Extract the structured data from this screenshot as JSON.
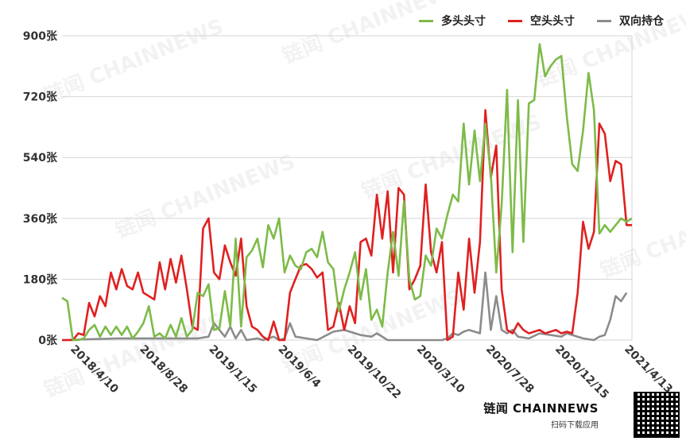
{
  "chart_data": {
    "type": "line",
    "ylim": [
      0,
      900
    ],
    "yticks": [
      "0张",
      "180张",
      "360张",
      "540张",
      "720张",
      "900张"
    ],
    "ytick_values": [
      0,
      180,
      360,
      540,
      720,
      900
    ],
    "xticks": [
      "2018/4/10",
      "2018/8/28",
      "2019/1/15",
      "2019/6/4",
      "2019/10/22",
      "2020/3/10",
      "2020/7/28",
      "2020/12/15",
      "2021/4/13"
    ],
    "grid": "horizontal",
    "legend_position": "top-right",
    "n_points": 160,
    "series": [
      {
        "name": "多头头寸",
        "color": "#7dbb48",
        "points": [
          [
            0,
            125
          ],
          [
            2,
            115
          ],
          [
            4,
            0
          ],
          [
            6,
            0
          ],
          [
            8,
            5
          ],
          [
            10,
            30
          ],
          [
            12,
            45
          ],
          [
            14,
            10
          ],
          [
            16,
            40
          ],
          [
            18,
            15
          ],
          [
            20,
            40
          ],
          [
            22,
            15
          ],
          [
            24,
            40
          ],
          [
            26,
            5
          ],
          [
            28,
            25
          ],
          [
            30,
            50
          ],
          [
            32,
            100
          ],
          [
            34,
            10
          ],
          [
            36,
            20
          ],
          [
            38,
            5
          ],
          [
            40,
            45
          ],
          [
            42,
            10
          ],
          [
            44,
            65
          ],
          [
            46,
            10
          ],
          [
            48,
            30
          ],
          [
            50,
            140
          ],
          [
            52,
            130
          ],
          [
            54,
            165
          ],
          [
            56,
            30
          ],
          [
            58,
            35
          ],
          [
            60,
            145
          ],
          [
            62,
            40
          ],
          [
            64,
            300
          ],
          [
            66,
            40
          ],
          [
            68,
            245
          ],
          [
            70,
            265
          ],
          [
            72,
            300
          ],
          [
            74,
            215
          ],
          [
            76,
            340
          ],
          [
            78,
            300
          ],
          [
            80,
            360
          ],
          [
            82,
            200
          ],
          [
            84,
            250
          ],
          [
            86,
            220
          ],
          [
            88,
            210
          ],
          [
            90,
            260
          ],
          [
            92,
            270
          ],
          [
            94,
            245
          ],
          [
            96,
            320
          ],
          [
            98,
            230
          ],
          [
            100,
            210
          ],
          [
            102,
            85
          ],
          [
            104,
            150
          ],
          [
            106,
            200
          ],
          [
            108,
            260
          ],
          [
            110,
            120
          ],
          [
            112,
            210
          ],
          [
            114,
            60
          ],
          [
            116,
            90
          ],
          [
            118,
            40
          ],
          [
            120,
            200
          ],
          [
            122,
            320
          ],
          [
            124,
            190
          ],
          [
            126,
            410
          ],
          [
            128,
            180
          ],
          [
            130,
            120
          ],
          [
            132,
            130
          ],
          [
            134,
            250
          ],
          [
            136,
            220
          ],
          [
            138,
            330
          ],
          [
            140,
            300
          ],
          [
            142,
            370
          ],
          [
            144,
            430
          ],
          [
            146,
            410
          ],
          [
            148,
            640
          ],
          [
            150,
            460
          ],
          [
            152,
            620
          ],
          [
            154,
            470
          ],
          [
            156,
            640
          ],
          [
            158,
            490
          ],
          [
            160,
            200
          ],
          [
            162,
            400
          ],
          [
            164,
            740
          ],
          [
            166,
            260
          ],
          [
            168,
            710
          ],
          [
            170,
            290
          ],
          [
            172,
            700
          ],
          [
            174,
            710
          ],
          [
            176,
            875
          ],
          [
            178,
            780
          ],
          [
            180,
            810
          ],
          [
            182,
            830
          ],
          [
            184,
            840
          ],
          [
            186,
            660
          ],
          [
            188,
            520
          ],
          [
            190,
            500
          ],
          [
            192,
            620
          ],
          [
            194,
            790
          ],
          [
            196,
            680
          ],
          [
            198,
            315
          ],
          [
            200,
            340
          ],
          [
            202,
            320
          ],
          [
            204,
            340
          ],
          [
            206,
            360
          ],
          [
            208,
            350
          ],
          [
            210,
            360
          ]
        ]
      },
      {
        "name": "空头头寸",
        "color": "#e02020",
        "points": [
          [
            0,
            0
          ],
          [
            2,
            0
          ],
          [
            4,
            0
          ],
          [
            6,
            20
          ],
          [
            8,
            15
          ],
          [
            10,
            110
          ],
          [
            12,
            70
          ],
          [
            14,
            130
          ],
          [
            16,
            100
          ],
          [
            18,
            200
          ],
          [
            20,
            150
          ],
          [
            22,
            210
          ],
          [
            24,
            160
          ],
          [
            26,
            150
          ],
          [
            28,
            200
          ],
          [
            30,
            140
          ],
          [
            32,
            130
          ],
          [
            34,
            120
          ],
          [
            36,
            230
          ],
          [
            38,
            150
          ],
          [
            40,
            240
          ],
          [
            42,
            170
          ],
          [
            44,
            250
          ],
          [
            46,
            150
          ],
          [
            48,
            40
          ],
          [
            50,
            30
          ],
          [
            52,
            330
          ],
          [
            54,
            360
          ],
          [
            56,
            200
          ],
          [
            58,
            180
          ],
          [
            60,
            280
          ],
          [
            62,
            230
          ],
          [
            64,
            190
          ],
          [
            66,
            300
          ],
          [
            68,
            100
          ],
          [
            70,
            40
          ],
          [
            72,
            30
          ],
          [
            74,
            10
          ],
          [
            76,
            0
          ],
          [
            78,
            55
          ],
          [
            80,
            0
          ],
          [
            82,
            0
          ],
          [
            84,
            140
          ],
          [
            86,
            180
          ],
          [
            88,
            220
          ],
          [
            90,
            225
          ],
          [
            92,
            210
          ],
          [
            94,
            185
          ],
          [
            96,
            200
          ],
          [
            98,
            30
          ],
          [
            100,
            40
          ],
          [
            102,
            110
          ],
          [
            104,
            30
          ],
          [
            106,
            100
          ],
          [
            108,
            50
          ],
          [
            110,
            290
          ],
          [
            112,
            300
          ],
          [
            114,
            250
          ],
          [
            116,
            430
          ],
          [
            118,
            300
          ],
          [
            120,
            440
          ],
          [
            122,
            200
          ],
          [
            124,
            450
          ],
          [
            126,
            430
          ],
          [
            128,
            150
          ],
          [
            130,
            180
          ],
          [
            132,
            220
          ],
          [
            134,
            460
          ],
          [
            136,
            260
          ],
          [
            138,
            200
          ],
          [
            140,
            290
          ],
          [
            142,
            0
          ],
          [
            144,
            10
          ],
          [
            146,
            200
          ],
          [
            148,
            90
          ],
          [
            150,
            300
          ],
          [
            152,
            140
          ],
          [
            154,
            290
          ],
          [
            156,
            680
          ],
          [
            158,
            480
          ],
          [
            160,
            575
          ],
          [
            162,
            150
          ],
          [
            164,
            30
          ],
          [
            166,
            20
          ],
          [
            168,
            50
          ],
          [
            170,
            30
          ],
          [
            172,
            20
          ],
          [
            174,
            25
          ],
          [
            176,
            30
          ],
          [
            178,
            20
          ],
          [
            180,
            25
          ],
          [
            182,
            30
          ],
          [
            184,
            20
          ],
          [
            186,
            25
          ],
          [
            188,
            20
          ],
          [
            190,
            140
          ],
          [
            192,
            350
          ],
          [
            194,
            270
          ],
          [
            196,
            320
          ],
          [
            198,
            640
          ],
          [
            200,
            610
          ],
          [
            202,
            470
          ],
          [
            204,
            530
          ],
          [
            206,
            520
          ],
          [
            208,
            340
          ],
          [
            210,
            340
          ]
        ]
      },
      {
        "name": "双向持仓",
        "color": "#8c8c8c",
        "points": [
          [
            0,
            0
          ],
          [
            20,
            5
          ],
          [
            30,
            5
          ],
          [
            40,
            5
          ],
          [
            50,
            5
          ],
          [
            54,
            10
          ],
          [
            56,
            50
          ],
          [
            58,
            30
          ],
          [
            60,
            10
          ],
          [
            62,
            40
          ],
          [
            64,
            5
          ],
          [
            66,
            30
          ],
          [
            68,
            0
          ],
          [
            72,
            5
          ],
          [
            74,
            0
          ],
          [
            78,
            10
          ],
          [
            80,
            0
          ],
          [
            82,
            5
          ],
          [
            84,
            50
          ],
          [
            86,
            10
          ],
          [
            90,
            5
          ],
          [
            94,
            0
          ],
          [
            100,
            25
          ],
          [
            104,
            30
          ],
          [
            110,
            15
          ],
          [
            114,
            10
          ],
          [
            116,
            20
          ],
          [
            120,
            0
          ],
          [
            130,
            0
          ],
          [
            140,
            0
          ],
          [
            142,
            5
          ],
          [
            144,
            20
          ],
          [
            146,
            15
          ],
          [
            148,
            25
          ],
          [
            150,
            30
          ],
          [
            154,
            20
          ],
          [
            156,
            200
          ],
          [
            158,
            30
          ],
          [
            160,
            130
          ],
          [
            162,
            30
          ],
          [
            164,
            20
          ],
          [
            166,
            30
          ],
          [
            168,
            10
          ],
          [
            172,
            5
          ],
          [
            176,
            20
          ],
          [
            180,
            15
          ],
          [
            184,
            10
          ],
          [
            186,
            20
          ],
          [
            188,
            15
          ],
          [
            192,
            5
          ],
          [
            196,
            0
          ],
          [
            198,
            10
          ],
          [
            200,
            15
          ],
          [
            202,
            60
          ],
          [
            204,
            130
          ],
          [
            206,
            115
          ],
          [
            208,
            140
          ]
        ]
      }
    ]
  },
  "watermark": "链闻 CHAINNEWS",
  "brand": {
    "name": "链闻 CHAINNEWS",
    "subtitle": "扫码下载应用"
  }
}
